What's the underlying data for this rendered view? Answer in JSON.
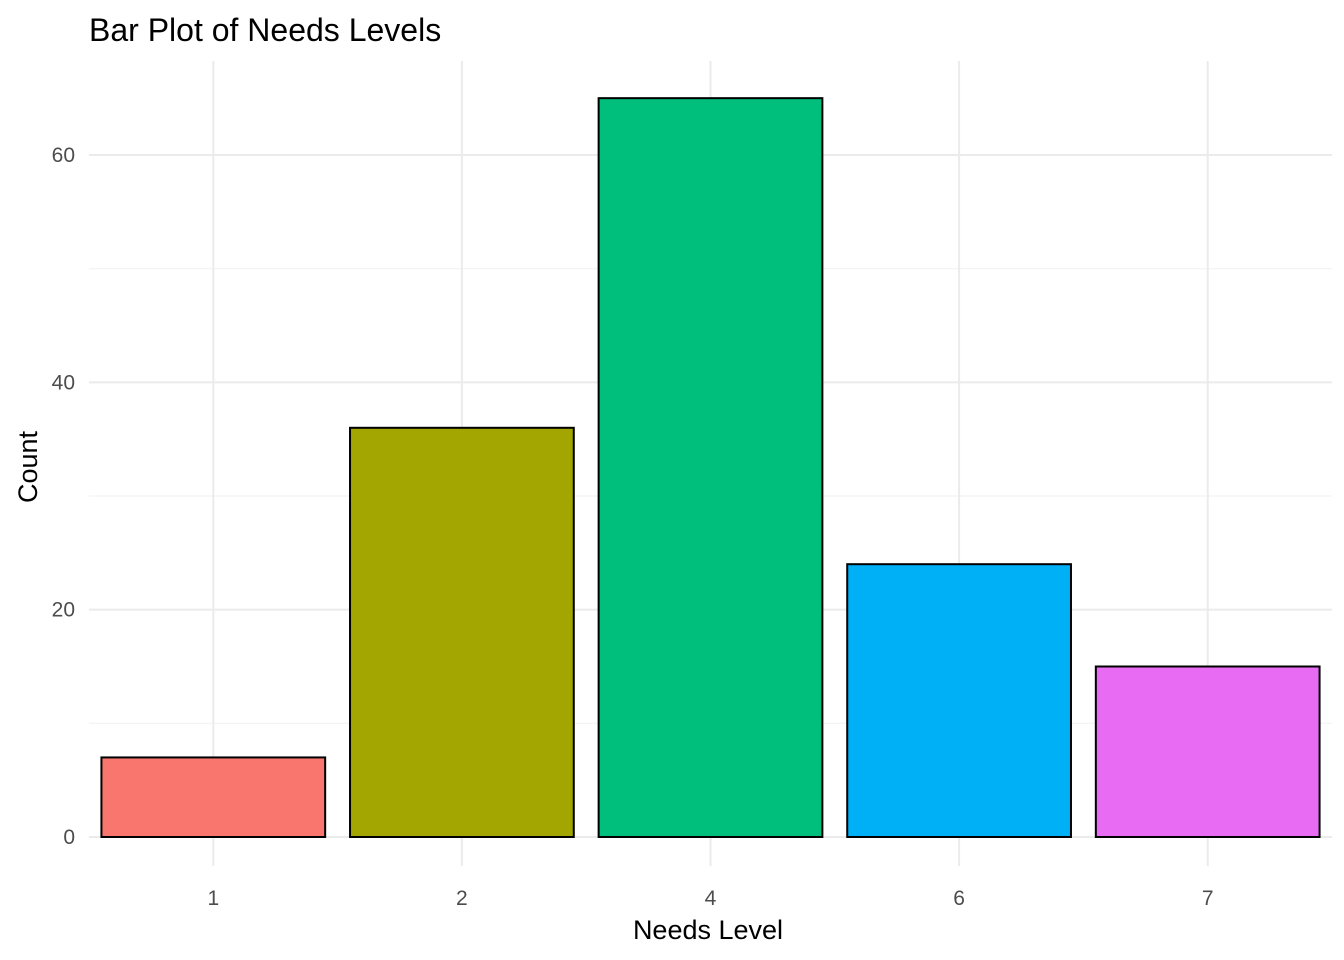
{
  "chart_data": {
    "type": "bar",
    "title": "Bar Plot of Needs Levels",
    "xlabel": "Needs Level",
    "ylabel": "Count",
    "categories": [
      "1",
      "2",
      "4",
      "6",
      "7"
    ],
    "values": [
      7,
      36,
      65,
      24,
      15
    ],
    "colors": [
      "#F8766D",
      "#A3A500",
      "#00BF7D",
      "#00B0F6",
      "#E76BF3"
    ],
    "bar_outline_color": "#000000",
    "ylim": [
      0,
      68
    ],
    "y_ticks": [
      0,
      20,
      40,
      60
    ],
    "y_tick_labels": [
      "0",
      "20",
      "40",
      "60"
    ],
    "grid": true,
    "legend": "none"
  }
}
